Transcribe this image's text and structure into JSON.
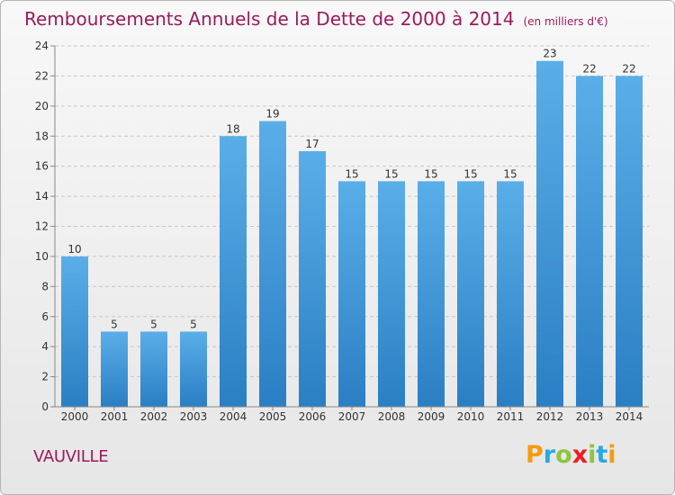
{
  "header": {
    "title": "Remboursements Annuels de la Dette de 2000 à 2014",
    "unit": "(en milliers d'€)"
  },
  "footer": {
    "place": "VAUVILLE",
    "logo_letters": [
      "P",
      "r",
      "o",
      "x",
      "i",
      "t",
      "i"
    ],
    "logo_colors": [
      "#f39c12",
      "#27aae1",
      "#8cc63f",
      "#ec1c24",
      "#8cc63f",
      "#27aae1",
      "#f39c12"
    ]
  },
  "colors": {
    "bar_light": "#5aaee8",
    "bar_dark": "#2a7fc4",
    "title": "#9b1b5c",
    "grid": "#c7c7c7"
  },
  "chart_data": {
    "type": "bar",
    "title": "Remboursements Annuels de la Dette de 2000 à 2014",
    "xlabel": "",
    "ylabel": "",
    "categories": [
      "2000",
      "2001",
      "2002",
      "2003",
      "2004",
      "2005",
      "2006",
      "2007",
      "2008",
      "2009",
      "2010",
      "2011",
      "2012",
      "2013",
      "2014"
    ],
    "values": [
      10,
      5,
      5,
      5,
      18,
      19,
      17,
      15,
      15,
      15,
      15,
      15,
      23,
      22,
      22
    ],
    "ylim": [
      0,
      24
    ],
    "yticks": [
      "0",
      "2",
      "4",
      "6",
      "8",
      "10",
      "12",
      "14",
      "16",
      "18",
      "20",
      "22",
      "24"
    ],
    "grid": true
  }
}
